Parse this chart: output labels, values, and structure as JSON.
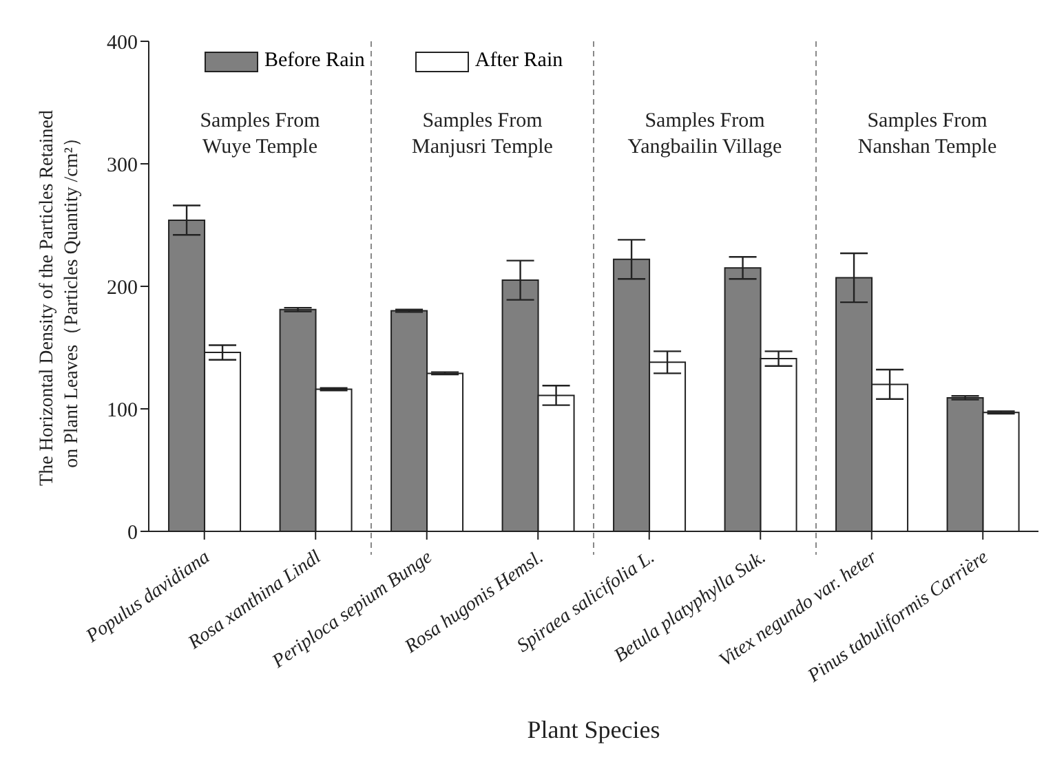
{
  "chart_data": {
    "type": "bar",
    "xlabel": "Plant  Species",
    "ylabel": "The Horizontal Density of the Particles Retained\non Plant Leaves（Particles Quantity /cm²）",
    "categories": [
      "Populus davidiana",
      "Rosa xanthina Lindl",
      "Periploca sepium Bunge",
      "Rosa hugonis Hemsl.",
      "Spiraea salicifolia L.",
      "Betula platyphylla Suk.",
      "Vitex negundo var. heter",
      "Pinus tabuliformis Carrière"
    ],
    "series": [
      {
        "name": "Before Rain",
        "color": "#7f7f7f",
        "values": [
          254,
          181,
          180,
          205,
          222,
          215,
          207,
          109
        ],
        "errors": [
          12,
          1.5,
          1,
          16,
          16,
          9,
          20,
          1.5
        ]
      },
      {
        "name": "After Rain",
        "color": "#ffffff",
        "values": [
          146,
          116,
          129,
          111,
          138,
          141,
          120,
          97
        ],
        "errors": [
          6,
          1,
          1,
          8,
          9,
          6,
          12,
          1
        ]
      }
    ],
    "ylim": [
      0,
      400
    ],
    "yticks": [
      0,
      100,
      200,
      300,
      400
    ],
    "grid": false,
    "legend": "top left",
    "annotations": [
      "Samples From\nWuye Temple",
      "Samples From\nManjusri Temple",
      "Samples From\nYangbailin Village",
      "Samples From\nNanshan Temple"
    ]
  }
}
